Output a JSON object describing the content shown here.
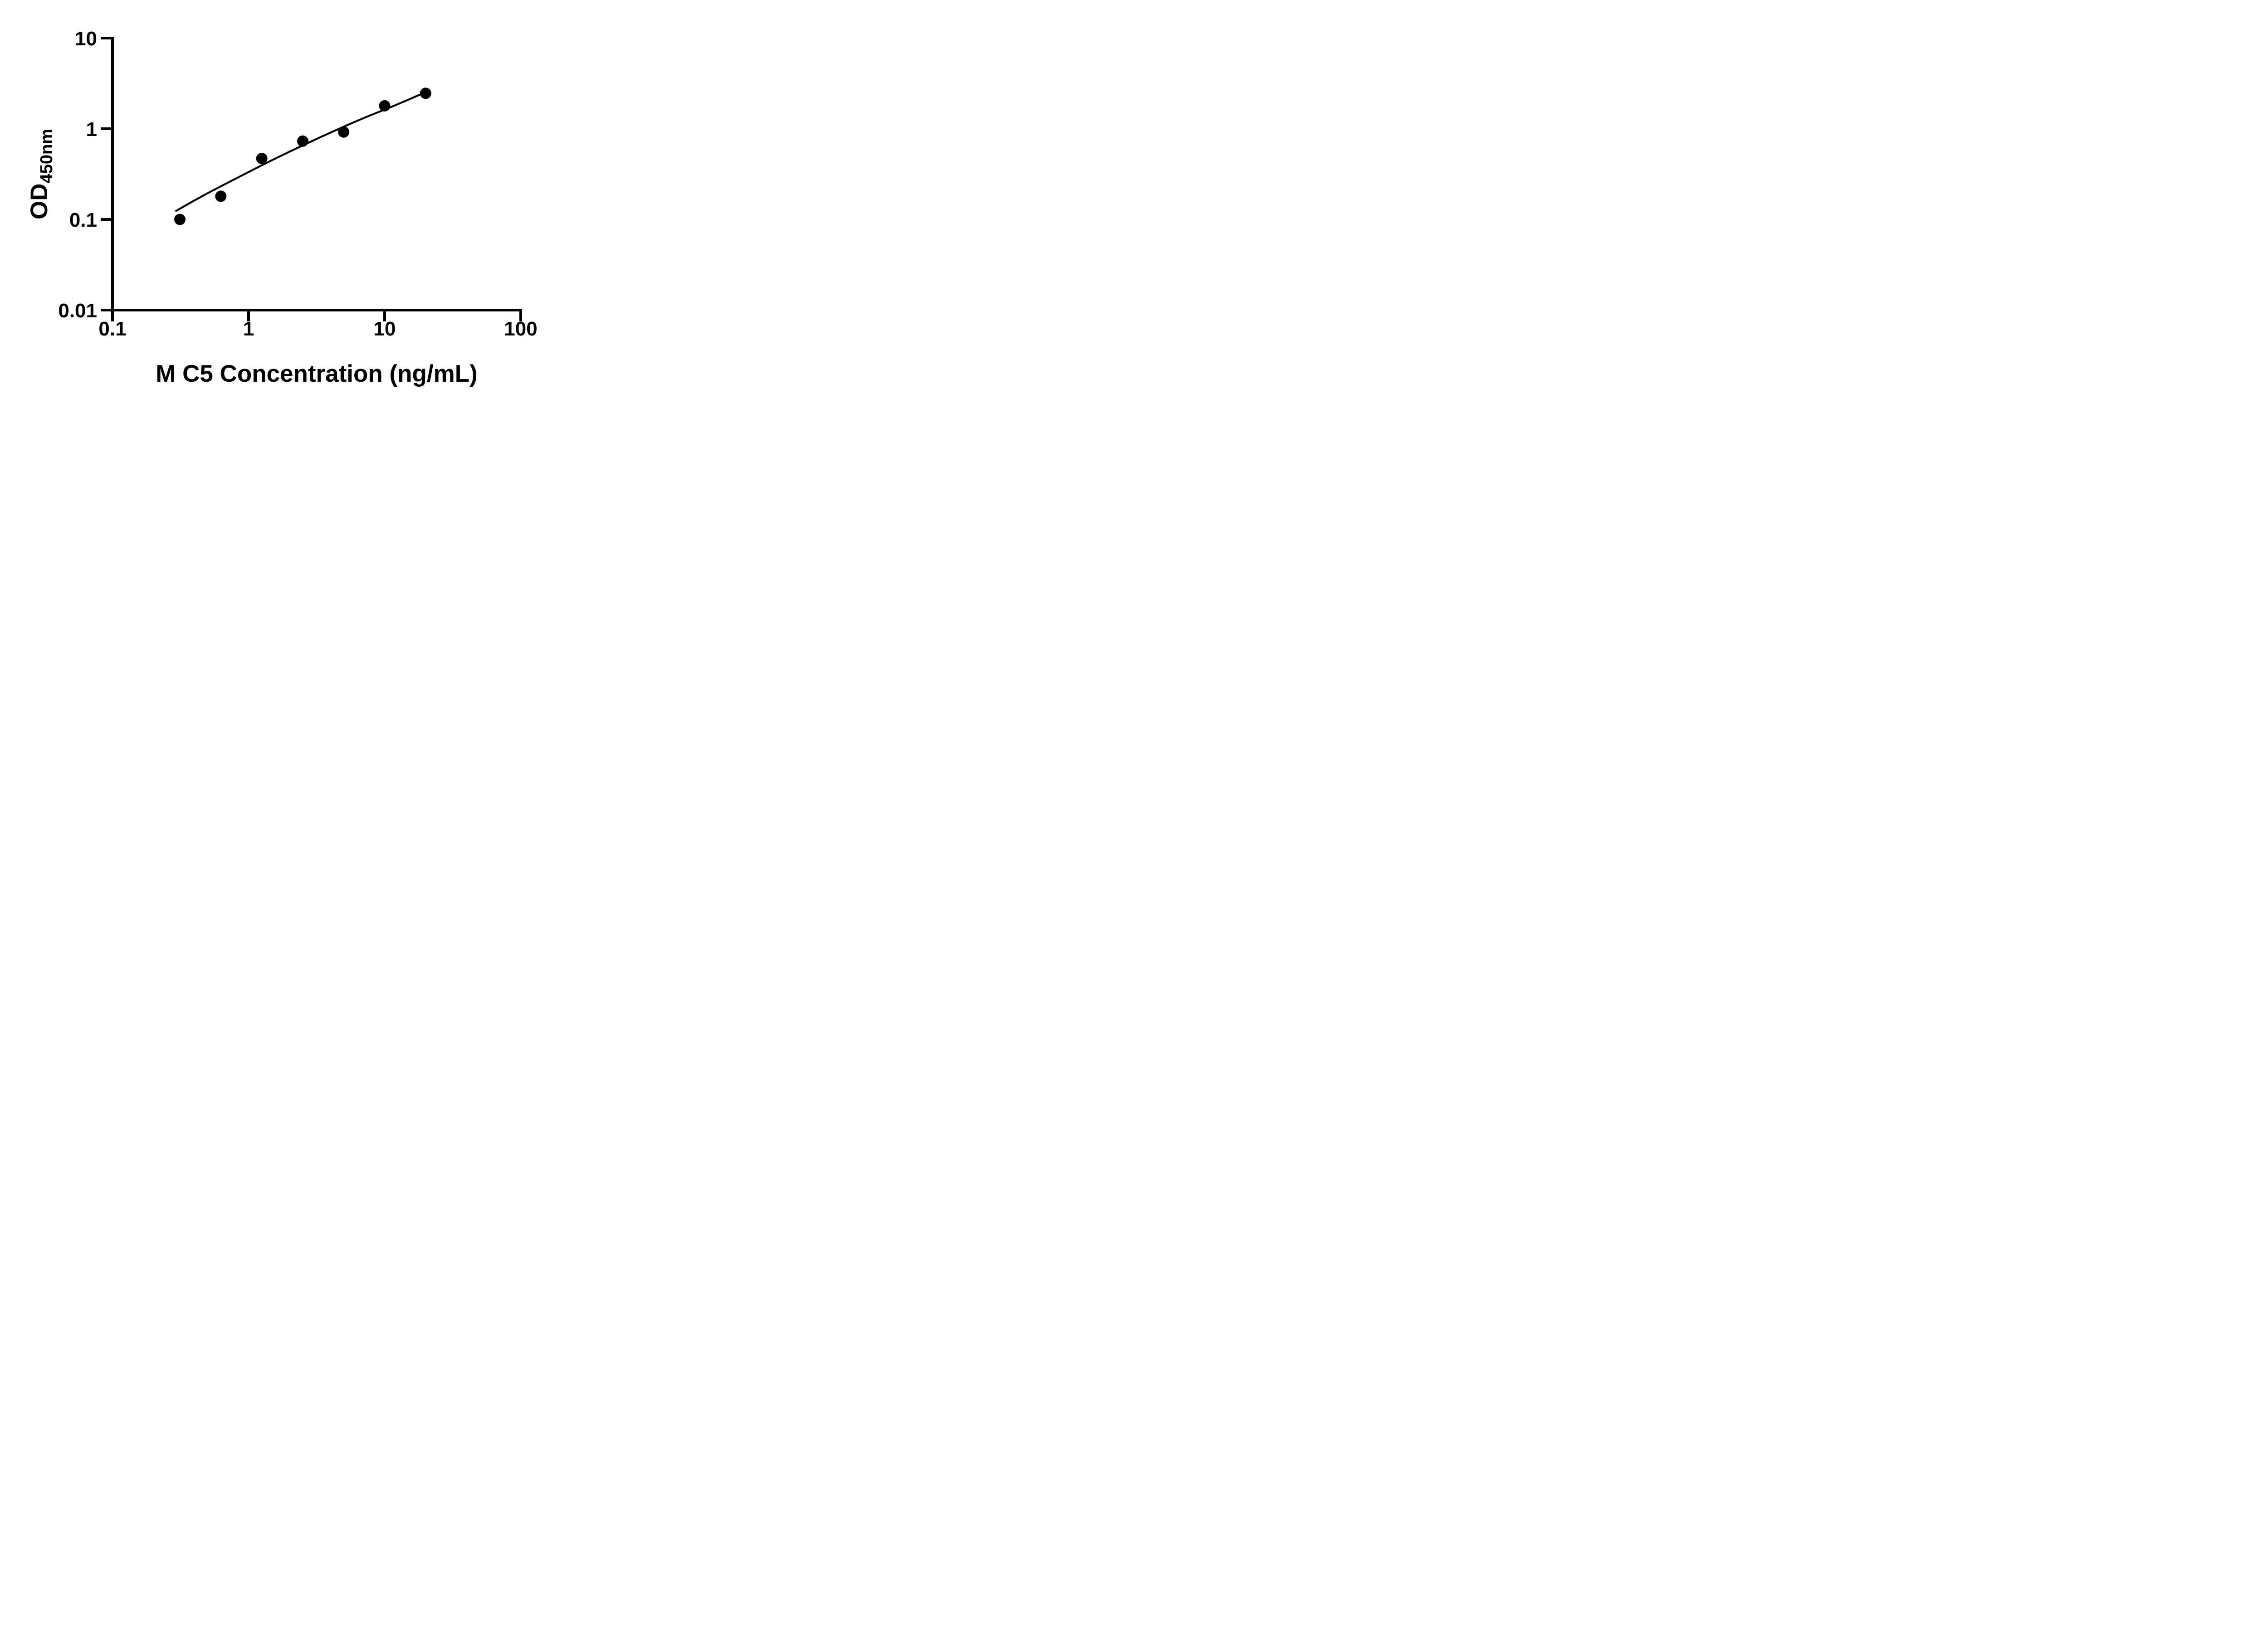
{
  "figure": {
    "background": "#ffffff",
    "ink_color": "#000000"
  },
  "chart_data": {
    "type": "scatter",
    "title": "",
    "xlabel": "M C5 Concentration (ng/mL)",
    "ylabel_main": "OD",
    "ylabel_subscript": "450nm",
    "x_scale": "log",
    "y_scale": "log",
    "xlim": [
      0.1,
      100
    ],
    "ylim": [
      0.01,
      10
    ],
    "x_tick_values": [
      0.1,
      1,
      10,
      100
    ],
    "x_tick_labels": [
      "0.1",
      "1",
      "10",
      "100"
    ],
    "y_tick_values": [
      10,
      1,
      0.1,
      0.01
    ],
    "y_tick_labels": [
      "10",
      "1",
      "0.1",
      "0.01"
    ],
    "grid": false,
    "legend": null,
    "series": [
      {
        "name": "standard-points",
        "marker": "circle",
        "color": "#000000",
        "x": [
          0.3125,
          0.625,
          1.25,
          2.5,
          5,
          10,
          20
        ],
        "y": [
          0.1,
          0.18,
          0.47,
          0.73,
          0.92,
          1.79,
          2.46
        ]
      }
    ],
    "fit_curve": {
      "name": "fitted-standard-curve",
      "color": "#000000",
      "points": [
        [
          0.29,
          0.123
        ],
        [
          0.47,
          0.185
        ],
        [
          0.81,
          0.283
        ],
        [
          1.38,
          0.426
        ],
        [
          2.36,
          0.629
        ],
        [
          4.04,
          0.913
        ],
        [
          6.92,
          1.3
        ],
        [
          11.8,
          1.8
        ],
        [
          18.2,
          2.38
        ]
      ]
    }
  }
}
